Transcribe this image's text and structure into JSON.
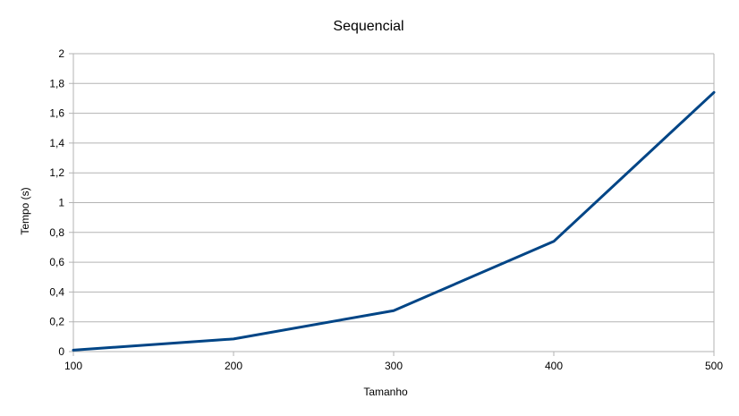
{
  "chart_data": {
    "type": "line",
    "title": "Sequencial",
    "xlabel": "Tamanho",
    "ylabel": "Tempo (s)",
    "x": [
      100,
      200,
      300,
      400,
      500
    ],
    "x_tick_labels": [
      "100",
      "200",
      "300",
      "400",
      "500"
    ],
    "xlim": [
      100,
      500
    ],
    "y_ticks": [
      0,
      0.2,
      0.4,
      0.6,
      0.8,
      1,
      1.2,
      1.4,
      1.6,
      1.8,
      2
    ],
    "y_tick_labels": [
      "0",
      "0,2",
      "0,4",
      "0,6",
      "0,8",
      "1",
      "1,2",
      "1,4",
      "1,6",
      "1,8",
      "2"
    ],
    "ylim": [
      0,
      2
    ],
    "grid": "horizontal",
    "legend": "none",
    "series": [
      {
        "values": [
          0.01,
          0.085,
          0.275,
          0.74,
          1.74
        ],
        "color": "#004586"
      }
    ],
    "colors": {
      "grid": "#b3b3b3",
      "axis": "#b3b3b3"
    }
  }
}
